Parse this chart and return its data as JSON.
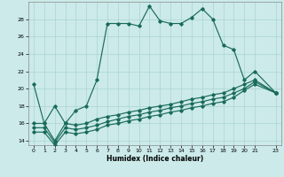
{
  "xlabel": "Humidex (Indice chaleur)",
  "bg_color": "#cceaea",
  "line_color": "#1a6b5a",
  "grid_color": "#aad4d4",
  "xlim": [
    -0.5,
    23.5
  ],
  "ylim": [
    13.5,
    30.0
  ],
  "yticks": [
    14,
    16,
    18,
    20,
    22,
    24,
    26,
    28
  ],
  "xticks": [
    0,
    1,
    2,
    3,
    4,
    5,
    6,
    7,
    8,
    9,
    10,
    11,
    12,
    13,
    14,
    15,
    16,
    17,
    18,
    19,
    20,
    21,
    23
  ],
  "line1_x": [
    0,
    1,
    2,
    3,
    4,
    5,
    6,
    7,
    8,
    9,
    10,
    11,
    12,
    13,
    14,
    15,
    16,
    17,
    18,
    19,
    20,
    21,
    23
  ],
  "line1_y": [
    20.5,
    16.0,
    18.0,
    16.0,
    17.5,
    18.0,
    21.0,
    27.5,
    27.5,
    27.5,
    27.2,
    29.5,
    27.8,
    27.5,
    27.5,
    28.2,
    29.2,
    28.0,
    25.0,
    24.5,
    21.0,
    22.0,
    19.5
  ],
  "line2_x": [
    0,
    1,
    2,
    3,
    4,
    5,
    6,
    7,
    8,
    9,
    10,
    11,
    12,
    13,
    14,
    15,
    16,
    17,
    18,
    19,
    20,
    21,
    23
  ],
  "line2_y": [
    16.0,
    16.0,
    14.0,
    16.0,
    15.8,
    16.0,
    16.5,
    16.8,
    17.0,
    17.3,
    17.5,
    17.8,
    18.0,
    18.2,
    18.5,
    18.8,
    19.0,
    19.3,
    19.5,
    20.0,
    20.5,
    21.0,
    19.5
  ],
  "line3_x": [
    0,
    1,
    2,
    3,
    4,
    5,
    6,
    7,
    8,
    9,
    10,
    11,
    12,
    13,
    14,
    15,
    16,
    17,
    18,
    19,
    20,
    21,
    23
  ],
  "line3_y": [
    15.5,
    15.5,
    13.8,
    15.5,
    15.3,
    15.5,
    15.8,
    16.2,
    16.5,
    16.8,
    17.0,
    17.3,
    17.5,
    17.8,
    18.0,
    18.3,
    18.5,
    18.8,
    19.0,
    19.5,
    20.0,
    20.8,
    19.5
  ],
  "line4_x": [
    0,
    1,
    2,
    3,
    4,
    5,
    6,
    7,
    8,
    9,
    10,
    11,
    12,
    13,
    14,
    15,
    16,
    17,
    18,
    19,
    20,
    21,
    23
  ],
  "line4_y": [
    15.0,
    15.0,
    13.5,
    15.0,
    14.8,
    15.0,
    15.3,
    15.8,
    16.0,
    16.3,
    16.5,
    16.8,
    17.0,
    17.3,
    17.5,
    17.8,
    18.0,
    18.3,
    18.5,
    19.0,
    19.8,
    20.5,
    19.5
  ]
}
